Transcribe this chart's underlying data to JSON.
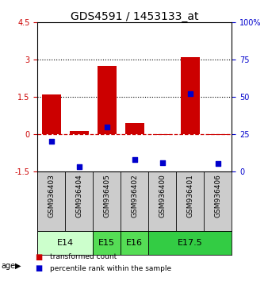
{
  "title": "GDS4591 / 1453133_at",
  "samples": [
    "GSM936403",
    "GSM936404",
    "GSM936405",
    "GSM936402",
    "GSM936400",
    "GSM936401",
    "GSM936406"
  ],
  "red_values": [
    1.6,
    0.12,
    2.75,
    0.45,
    -0.05,
    3.1,
    -0.05
  ],
  "blue_pct": [
    20,
    3,
    30,
    8,
    6,
    52,
    5
  ],
  "ylim_left": [
    -1.5,
    4.5
  ],
  "ylim_right": [
    0,
    100
  ],
  "yticks_left": [
    -1.5,
    0,
    1.5,
    3,
    4.5
  ],
  "yticks_right": [
    0,
    25,
    50,
    75,
    100
  ],
  "ytick_labels_left": [
    "-1.5",
    "0",
    "1.5",
    "3",
    "4.5"
  ],
  "ytick_labels_right": [
    "0",
    "25",
    "50",
    "75",
    "100%"
  ],
  "hlines": [
    1.5,
    3.0
  ],
  "age_groups": [
    {
      "label": "E14",
      "start": 0,
      "end": 2,
      "color": "#ccffcc"
    },
    {
      "label": "E15",
      "start": 2,
      "end": 3,
      "color": "#55dd55"
    },
    {
      "label": "E16",
      "start": 3,
      "end": 4,
      "color": "#55dd55"
    },
    {
      "label": "E17.5",
      "start": 4,
      "end": 7,
      "color": "#33cc44"
    }
  ],
  "red_color": "#cc0000",
  "blue_color": "#0000cc",
  "dashed_line_y": 0.0,
  "bar_width": 0.7,
  "legend_red": "transformed count",
  "legend_blue": "percentile rank within the sample",
  "title_fontsize": 10,
  "tick_fontsize": 7,
  "label_fontsize": 6.5,
  "age_fontsize": 8,
  "legend_fontsize": 6.5
}
